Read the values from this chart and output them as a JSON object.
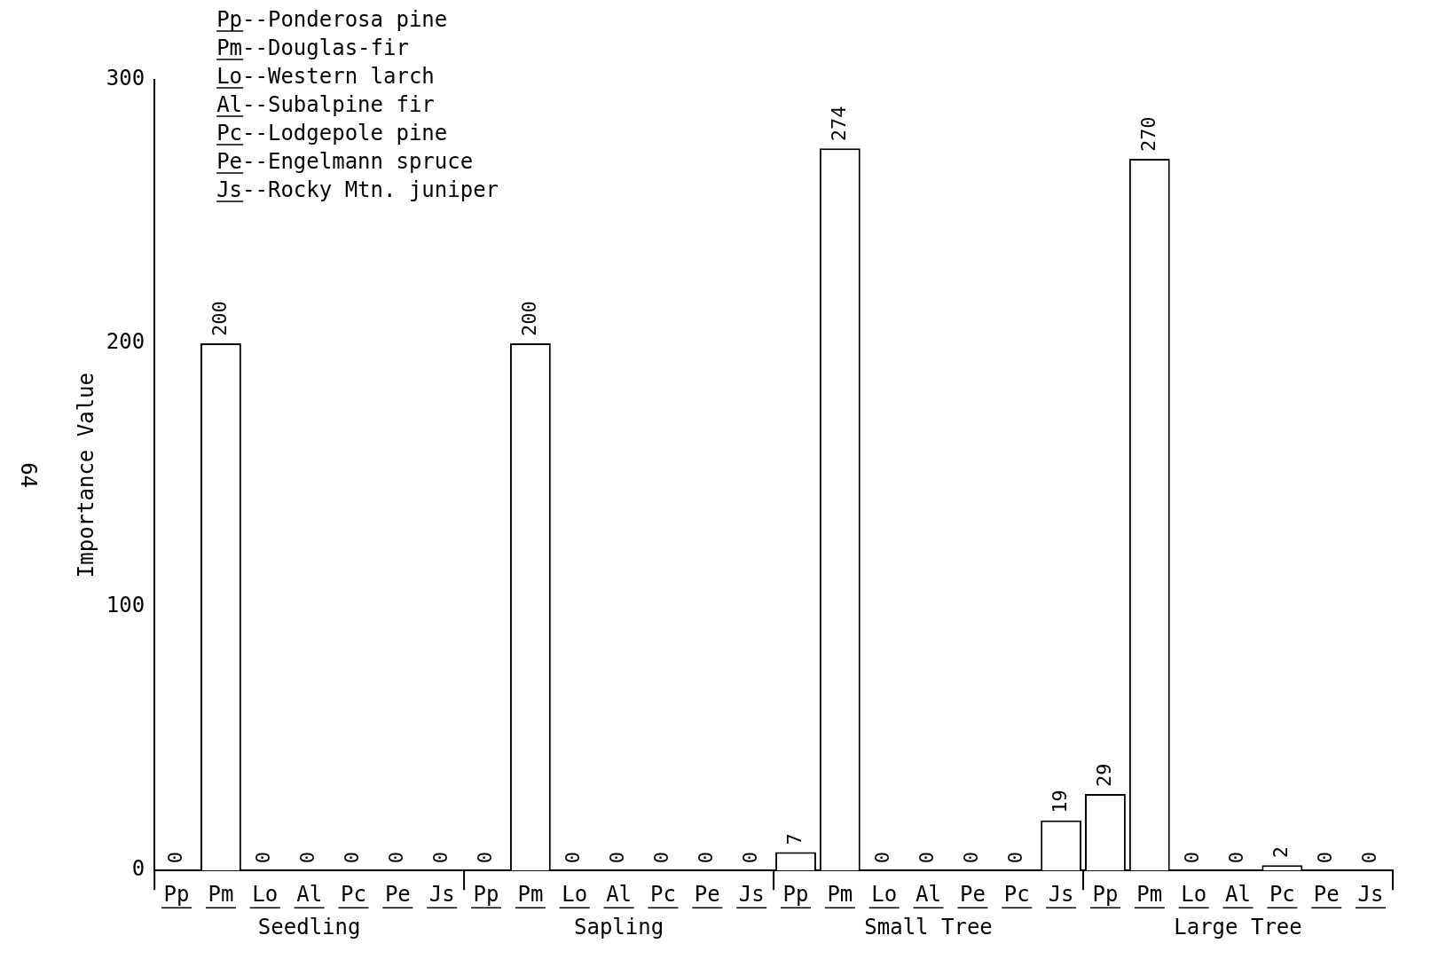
{
  "chart_data": {
    "type": "bar",
    "ylabel": "Importance Value",
    "categories": [
      "Pp",
      "Pm",
      "Lo",
      "Al",
      "Pc",
      "Pe",
      "Js",
      "Pp",
      "Pm",
      "Lo",
      "Al",
      "Pc",
      "Pe",
      "Js",
      "Pp",
      "Pm",
      "Lo",
      "Al",
      "Pe",
      "Pc",
      "Js",
      "Pp",
      "Pm",
      "Lo",
      "Al",
      "Pc",
      "Pe",
      "Js"
    ],
    "values": [
      0,
      200,
      0,
      0,
      0,
      0,
      0,
      0,
      200,
      0,
      0,
      0,
      0,
      0,
      7,
      274,
      0,
      0,
      0,
      0,
      19,
      29,
      270,
      0,
      0,
      2,
      0,
      0
    ],
    "color": "#ffffff",
    "data_labels": true,
    "ylim": [
      0,
      300
    ],
    "yticks": [
      0,
      100,
      200,
      300
    ],
    "grid": false,
    "legend": false,
    "annotations": [
      "Pp--Ponderosa pine",
      "Pm--Douglas-fir",
      "Lo--Western larch",
      "Al--Subalpine fir",
      "Pc--Lodgepole pine",
      "Pe--Engelmann spruce",
      "Js--Rocky Mtn. juniper",
      "Seedling",
      "Sapling",
      "Small Tree",
      "Large Tree",
      "64"
    ]
  }
}
